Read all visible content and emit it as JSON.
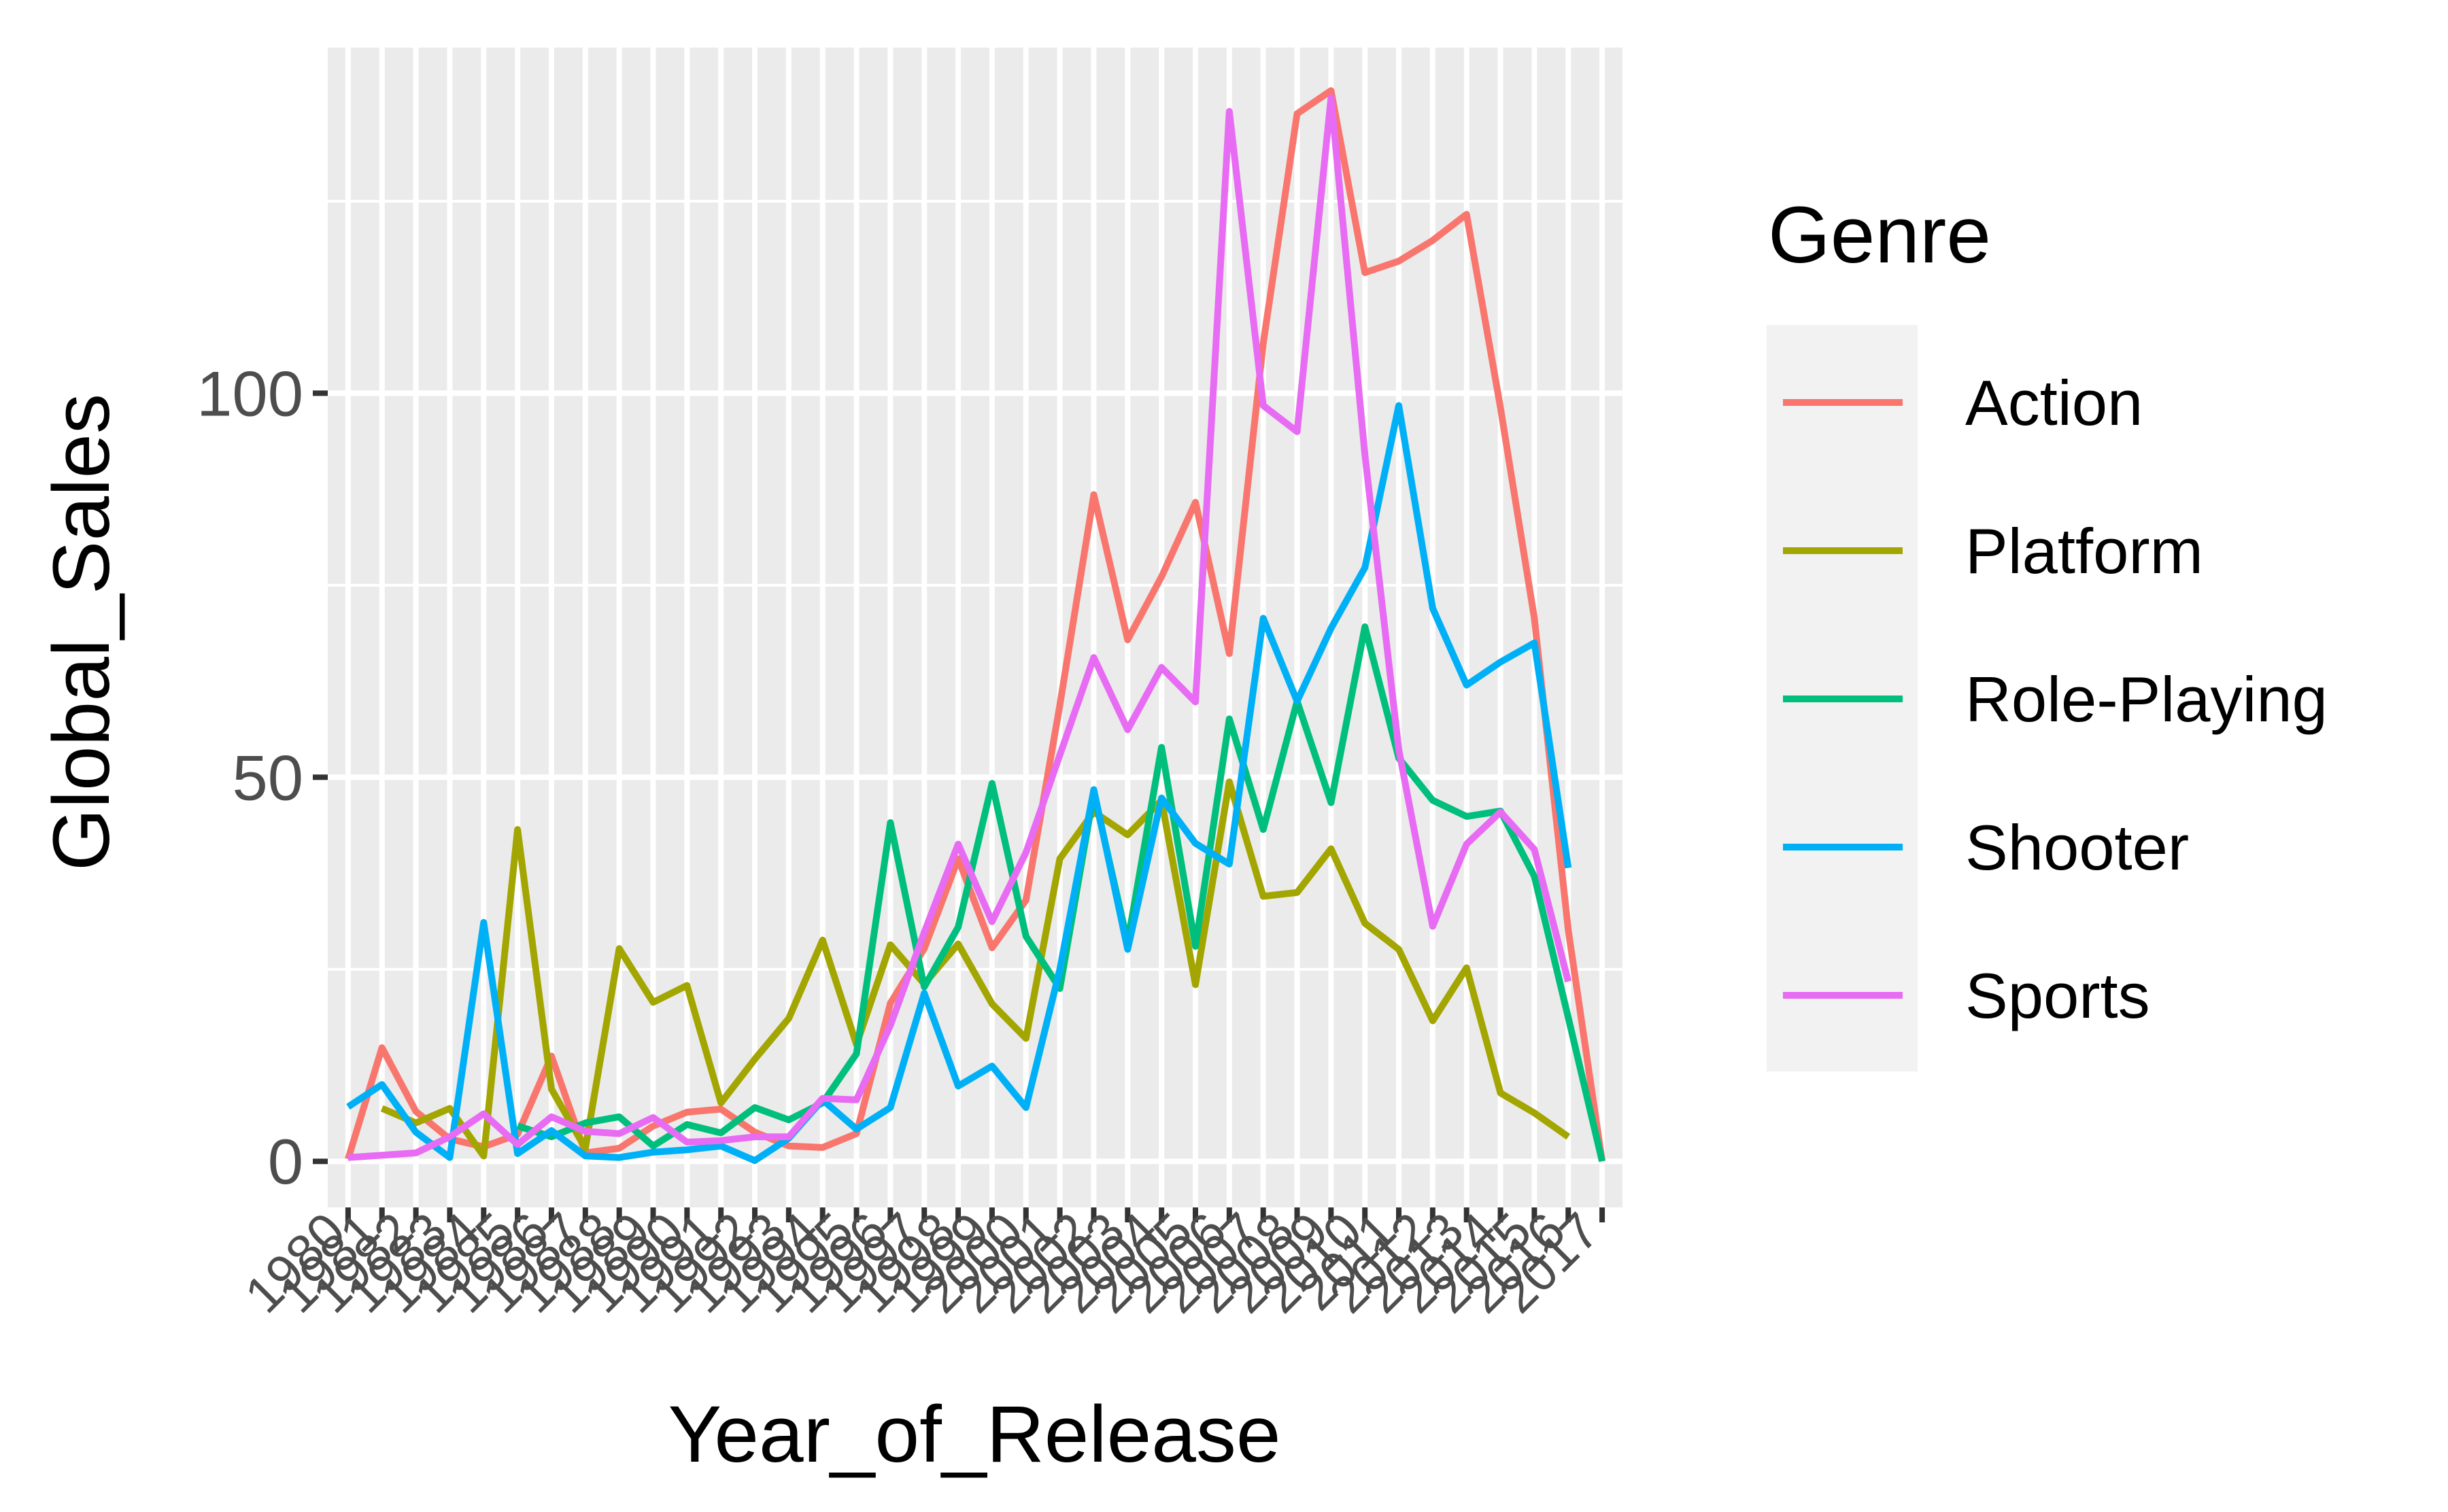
{
  "chart_data": {
    "type": "line",
    "xlabel": "Year_of_Release",
    "ylabel": "Global_Sales",
    "categories": [
      "1980",
      "1981",
      "1982",
      "1983",
      "1984",
      "1985",
      "1986",
      "1987",
      "1988",
      "1989",
      "1990",
      "1991",
      "1992",
      "1993",
      "1994",
      "1995",
      "1996",
      "1997",
      "1998",
      "1999",
      "2000",
      "2001",
      "2002",
      "2003",
      "2004",
      "2005",
      "2006",
      "2007",
      "2008",
      "2009",
      "2010",
      "2011",
      "2012",
      "2013",
      "2014",
      "2015",
      "2016",
      "2017"
    ],
    "ylim": [
      -6,
      145
    ],
    "yticks": [
      0,
      50,
      100
    ],
    "grid": true,
    "legend": {
      "title": "Genre",
      "position": "right"
    },
    "series": [
      {
        "name": "Action",
        "color": "#F8766D",
        "values": [
          0.3,
          14.8,
          6.5,
          2.9,
          1.9,
          3.5,
          13.7,
          1.1,
          1.7,
          4.6,
          6.4,
          6.8,
          3.8,
          2.0,
          1.8,
          3.6,
          20.6,
          27.7,
          39.4,
          27.8,
          34.0,
          59.4,
          86.8,
          67.9,
          76.1,
          85.8,
          66.1,
          106.5,
          136.4,
          139.4,
          115.7,
          117.2,
          119.9,
          123.3,
          98.1,
          70.7,
          30.1,
          0.01
        ]
      },
      {
        "name": "Platform",
        "color": "#A3A500",
        "values": [
          null,
          6.9,
          5.0,
          6.9,
          0.7,
          43.2,
          9.4,
          1.7,
          27.7,
          20.7,
          22.9,
          7.6,
          13.3,
          18.6,
          28.8,
          15.2,
          28.2,
          23.1,
          28.3,
          20.5,
          16.0,
          39.4,
          45.5,
          42.5,
          47.0,
          23.0,
          49.4,
          34.5,
          35.0,
          40.7,
          31.0,
          27.6,
          18.3,
          25.2,
          8.9,
          6.3,
          3.2,
          null
        ]
      },
      {
        "name": "Role-Playing",
        "color": "#00BF7D",
        "values": [
          null,
          null,
          null,
          null,
          null,
          4.6,
          3.2,
          5.0,
          5.8,
          2.0,
          4.8,
          3.7,
          7.0,
          5.4,
          7.6,
          14.0,
          44.1,
          22.7,
          30.5,
          49.2,
          29.3,
          22.5,
          48.0,
          28.5,
          53.9,
          28.0,
          57.6,
          43.2,
          59.9,
          46.7,
          69.6,
          52.5,
          47.0,
          44.9,
          45.6,
          37.1,
          18.7,
          0.01
        ]
      },
      {
        "name": "Shooter",
        "color": "#00B0F6",
        "values": [
          7.1,
          10.0,
          3.8,
          0.5,
          31.1,
          1.0,
          4.0,
          0.7,
          0.5,
          1.2,
          1.5,
          2.0,
          0.1,
          3.0,
          8.0,
          4.2,
          7.0,
          21.9,
          9.8,
          12.4,
          7.0,
          25.0,
          48.4,
          27.6,
          47.3,
          41.4,
          38.7,
          70.7,
          59.9,
          69.4,
          77.3,
          98.4,
          72.0,
          62.0,
          65.0,
          67.5,
          38.2,
          null
        ]
      },
      {
        "name": "Sports",
        "color": "#E76BF3",
        "values": [
          0.5,
          0.8,
          1.1,
          3.2,
          6.2,
          2.2,
          5.8,
          3.9,
          3.6,
          5.7,
          2.5,
          2.7,
          3.2,
          3.2,
          8.2,
          8.0,
          17.7,
          29.8,
          41.3,
          31.2,
          40.2,
          52.9,
          65.6,
          56.2,
          64.3,
          59.8,
          136.7,
          98.4,
          95.0,
          138.5,
          92.0,
          53.6,
          30.6,
          41.3,
          45.5,
          40.6,
          23.4,
          null
        ]
      }
    ]
  }
}
